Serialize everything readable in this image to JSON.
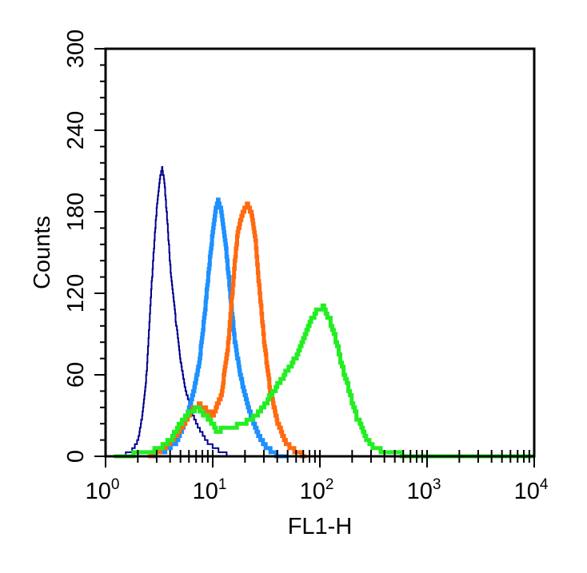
{
  "chart_data": {
    "type": "line",
    "xlabel": "FL1-H",
    "ylabel": "Counts",
    "xscale": "log",
    "xlim": [
      1,
      10000
    ],
    "ylim": [
      0,
      300
    ],
    "x_ticks": [
      {
        "base": "10",
        "exp": "0"
      },
      {
        "base": "10",
        "exp": "1"
      },
      {
        "base": "10",
        "exp": "2"
      },
      {
        "base": "10",
        "exp": "3"
      },
      {
        "base": "10",
        "exp": "4"
      }
    ],
    "y_ticks": [
      "0",
      "60",
      "120",
      "180",
      "240",
      "300"
    ],
    "y_tick_values": [
      0,
      60,
      120,
      180,
      240,
      300
    ],
    "grid": false,
    "legend": "none",
    "series": [
      {
        "color": "#00008B",
        "points": [
          [
            1.2,
            0
          ],
          [
            1.5,
            1
          ],
          [
            1.8,
            5
          ],
          [
            2.0,
            12
          ],
          [
            2.2,
            30
          ],
          [
            2.4,
            60
          ],
          [
            2.6,
            110
          ],
          [
            2.8,
            150
          ],
          [
            3.0,
            185
          ],
          [
            3.2,
            205
          ],
          [
            3.35,
            212
          ],
          [
            3.5,
            205
          ],
          [
            3.7,
            180
          ],
          [
            4.0,
            140
          ],
          [
            4.5,
            100
          ],
          [
            5.0,
            70
          ],
          [
            5.5,
            50
          ],
          [
            6.0,
            40
          ],
          [
            6.5,
            30
          ],
          [
            7.5,
            20
          ],
          [
            9.0,
            10
          ],
          [
            11.0,
            5
          ],
          [
            13.0,
            2
          ],
          [
            15.0,
            0
          ]
        ]
      },
      {
        "color": "#1E90FF",
        "points": [
          [
            2.5,
            0
          ],
          [
            3.5,
            4
          ],
          [
            4.5,
            10
          ],
          [
            5.5,
            25
          ],
          [
            6.5,
            45
          ],
          [
            7.5,
            70
          ],
          [
            8.5,
            110
          ],
          [
            9.5,
            150
          ],
          [
            10.5,
            180
          ],
          [
            11.2,
            188
          ],
          [
            12.0,
            180
          ],
          [
            13.0,
            160
          ],
          [
            14.5,
            120
          ],
          [
            16.0,
            85
          ],
          [
            18.0,
            60
          ],
          [
            20.0,
            45
          ],
          [
            23.0,
            28
          ],
          [
            27.0,
            15
          ],
          [
            32.0,
            6
          ],
          [
            40.0,
            1
          ],
          [
            50.0,
            0
          ]
        ]
      },
      {
        "color": "#FF6A10",
        "points": [
          [
            2.5,
            0
          ],
          [
            3.5,
            6
          ],
          [
            4.5,
            15
          ],
          [
            5.5,
            25
          ],
          [
            6.5,
            35
          ],
          [
            7.5,
            38
          ],
          [
            8.5,
            35
          ],
          [
            10.0,
            30
          ],
          [
            12.0,
            45
          ],
          [
            14.0,
            85
          ],
          [
            15.5,
            130
          ],
          [
            17.0,
            165
          ],
          [
            19.0,
            180
          ],
          [
            21.0,
            185
          ],
          [
            23.0,
            178
          ],
          [
            25.0,
            160
          ],
          [
            27.0,
            125
          ],
          [
            30.0,
            85
          ],
          [
            34.0,
            50
          ],
          [
            40.0,
            25
          ],
          [
            48.0,
            10
          ],
          [
            60.0,
            3
          ],
          [
            75.0,
            0
          ]
        ]
      },
      {
        "color": "#22EE22",
        "points": [
          [
            1.2,
            0
          ],
          [
            2.0,
            2
          ],
          [
            3.0,
            5
          ],
          [
            4.0,
            12
          ],
          [
            5.0,
            25
          ],
          [
            6.0,
            32
          ],
          [
            7.0,
            36
          ],
          [
            8.0,
            32
          ],
          [
            9.5,
            25
          ],
          [
            11.0,
            18
          ],
          [
            13.0,
            22
          ],
          [
            16.0,
            22
          ],
          [
            20.0,
            25
          ],
          [
            25.0,
            30
          ],
          [
            30.0,
            38
          ],
          [
            38.0,
            50
          ],
          [
            48.0,
            62
          ],
          [
            58.0,
            72
          ],
          [
            68.0,
            85
          ],
          [
            80.0,
            100
          ],
          [
            95.0,
            108
          ],
          [
            105.0,
            110
          ],
          [
            120.0,
            102
          ],
          [
            140.0,
            85
          ],
          [
            160.0,
            65
          ],
          [
            190.0,
            45
          ],
          [
            220.0,
            28
          ],
          [
            260.0,
            15
          ],
          [
            320.0,
            6
          ],
          [
            450.0,
            2
          ],
          [
            700.0,
            1
          ],
          [
            1500.0,
            0
          ],
          [
            3000.0,
            1
          ],
          [
            10000.0,
            0
          ]
        ]
      }
    ]
  }
}
